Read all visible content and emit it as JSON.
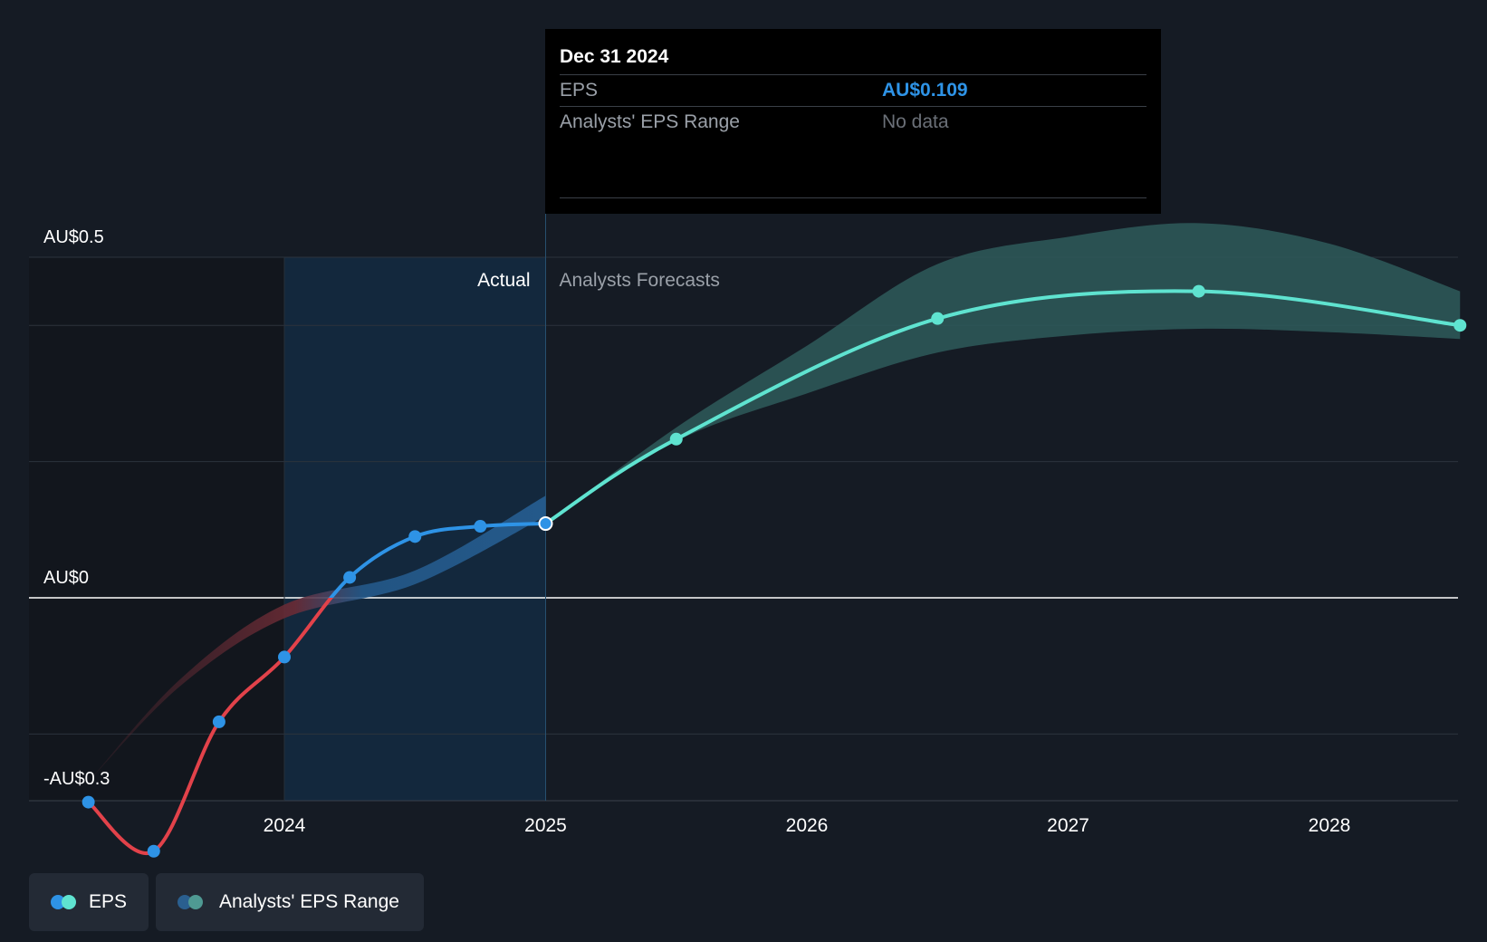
{
  "chart_data": {
    "type": "line",
    "title": "",
    "xlabel": "",
    "ylabel": "",
    "xlim": [
      2023.2,
      2028.5
    ],
    "ylim": [
      -0.3,
      0.5
    ],
    "x_ticks": [
      {
        "value": 2024,
        "label": "2024"
      },
      {
        "value": 2025,
        "label": "2025"
      },
      {
        "value": 2026,
        "label": "2026"
      },
      {
        "value": 2027,
        "label": "2027"
      },
      {
        "value": 2028,
        "label": "2028"
      }
    ],
    "y_ticks": [
      {
        "value": 0.5,
        "label": "AU$0.5"
      },
      {
        "value": 0,
        "label": "AU$0"
      },
      {
        "value": -0.3,
        "label": "-AU$0.3"
      }
    ],
    "regions": {
      "actual_label": "Actual",
      "forecast_label": "Analysts Forecasts",
      "highlight_start": 2024.0,
      "divider": 2025.0
    },
    "series": [
      {
        "name": "EPS (actual)",
        "color_negative": "#e2424a",
        "color_positive": "#2e93e6",
        "points": [
          {
            "x": 2023.25,
            "y": -0.3
          },
          {
            "x": 2023.5,
            "y": -0.372
          },
          {
            "x": 2023.75,
            "y": -0.182
          },
          {
            "x": 2024.0,
            "y": -0.087
          },
          {
            "x": 2024.25,
            "y": 0.03
          },
          {
            "x": 2024.5,
            "y": 0.09
          },
          {
            "x": 2024.75,
            "y": 0.105
          },
          {
            "x": 2025.0,
            "y": 0.109
          }
        ]
      },
      {
        "name": "EPS (forecast)",
        "color": "#5fe3d0",
        "points": [
          {
            "x": 2025.0,
            "y": 0.109
          },
          {
            "x": 2025.5,
            "y": 0.233
          },
          {
            "x": 2026.5,
            "y": 0.41
          },
          {
            "x": 2027.5,
            "y": 0.45
          },
          {
            "x": 2028.5,
            "y": 0.4
          }
        ]
      }
    ],
    "forecast_range": {
      "name": "Analysts' EPS Range",
      "color": "#2e5b5a",
      "x": [
        2025.0,
        2025.5,
        2026.0,
        2026.5,
        2027.0,
        2027.5,
        2028.0,
        2028.5
      ],
      "high": [
        0.109,
        0.25,
        0.37,
        0.49,
        0.53,
        0.55,
        0.52,
        0.45
      ],
      "low": [
        0.109,
        0.23,
        0.3,
        0.36,
        0.385,
        0.395,
        0.39,
        0.38
      ]
    },
    "actual_consensus_band": {
      "x": [
        2023.25,
        2023.6,
        2024.0,
        2024.5,
        2025.0
      ],
      "high": [
        -0.27,
        -0.12,
        -0.01,
        0.04,
        0.15
      ],
      "low": [
        -0.27,
        -0.13,
        -0.03,
        0.02,
        0.12
      ]
    }
  },
  "tooltip": {
    "date": "Dec 31 2024",
    "rows": [
      {
        "label": "EPS",
        "value": "AU$0.109"
      },
      {
        "label": "Analysts' EPS Range",
        "value": "No data"
      }
    ]
  },
  "legend": [
    {
      "label": "EPS",
      "colors": [
        "#2e93e6",
        "#5fe3d0"
      ]
    },
    {
      "label": "Analysts' EPS Range",
      "colors": [
        "#2a5f8f",
        "#4f9a93"
      ]
    }
  ]
}
